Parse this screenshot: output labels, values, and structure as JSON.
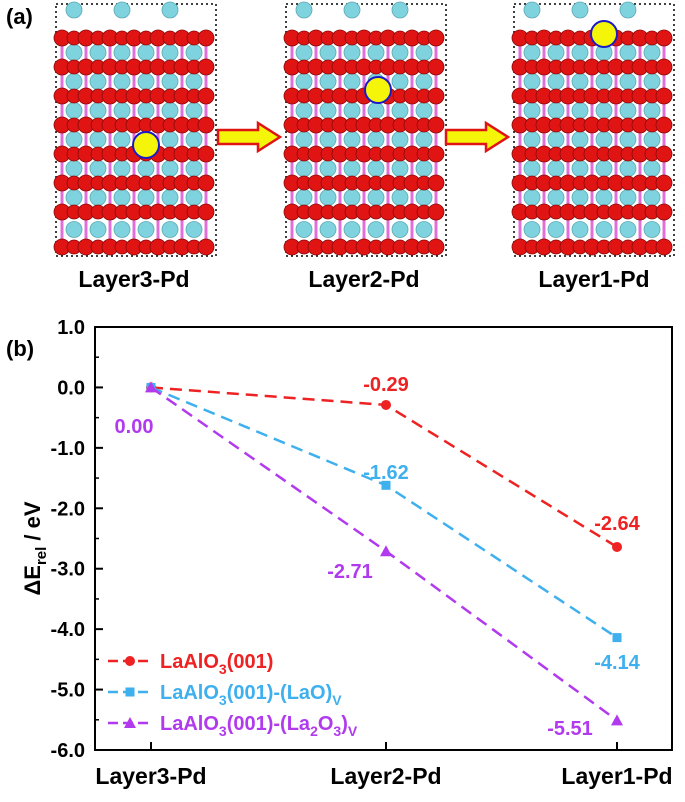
{
  "panel_a": {
    "label": "(a)",
    "structures": [
      {
        "name": "Layer3-Pd",
        "pd_row": 2,
        "pd_col": 3
      },
      {
        "name": "Layer2-Pd",
        "pd_row": 1,
        "pd_col": 3
      },
      {
        "name": "Layer1-Pd",
        "pd_row": 0,
        "pd_col": 3.2
      }
    ],
    "colors": {
      "oxygen": "#e11414",
      "lanthanum": "#7fd3de",
      "bond": "#e070d8",
      "palladium": "#f5f50a",
      "pd_outline": "#1a1ac8",
      "arrow_fill": "#f5f50a",
      "arrow_stroke": "#e11414"
    }
  },
  "panel_b": {
    "label": "(b)"
  },
  "chart_data": {
    "type": "line",
    "categories": [
      "Layer3-Pd",
      "Layer2-Pd",
      "Layer1-Pd"
    ],
    "ylabel_main": "ΔE",
    "ylabel_sub": "rel",
    "ylabel_tail": " / eV",
    "ylim": [
      -6.0,
      1.0
    ],
    "yticks": [
      "1.0",
      "0.0",
      "-1.0",
      "-2.0",
      "-3.0",
      "-4.0",
      "-5.0",
      "-6.0"
    ],
    "series": [
      {
        "name": "LaAlO3(001)",
        "legend_main": "LaAlO",
        "legend_sub1": "3",
        "legend_mid": "(001)",
        "legend_sub2": "",
        "legend_tail": "",
        "legend_sub3": "",
        "color": "#ee2222",
        "marker": "circle",
        "values": [
          0.0,
          -0.29,
          -2.64
        ],
        "labels": [
          "",
          "-0.29",
          "-2.64"
        ]
      },
      {
        "name": "LaAlO3(001)-(LaO)V",
        "legend_main": "LaAlO",
        "legend_sub1": "3",
        "legend_mid": "(001)-(LaO)",
        "legend_sub2": "V",
        "legend_tail": "",
        "legend_sub3": "",
        "color": "#3fb0ee",
        "marker": "square",
        "values": [
          0.0,
          -1.62,
          -4.14
        ],
        "labels": [
          "",
          "-1.62",
          "-4.14"
        ]
      },
      {
        "name": "LaAlO3(001)-(La2O3)V",
        "legend_main": "LaAlO",
        "legend_sub1": "3",
        "legend_mid": "(001)-(La",
        "legend_sub2": "2",
        "legend_tail": "O",
        "legend_sub3": "3",
        "legend_close": ")",
        "legend_sub4": "V",
        "color": "#b23aee",
        "marker": "triangle",
        "values": [
          0.0,
          -2.71,
          -5.51
        ],
        "labels": [
          "0.00",
          "-2.71",
          "-5.51"
        ]
      }
    ]
  }
}
